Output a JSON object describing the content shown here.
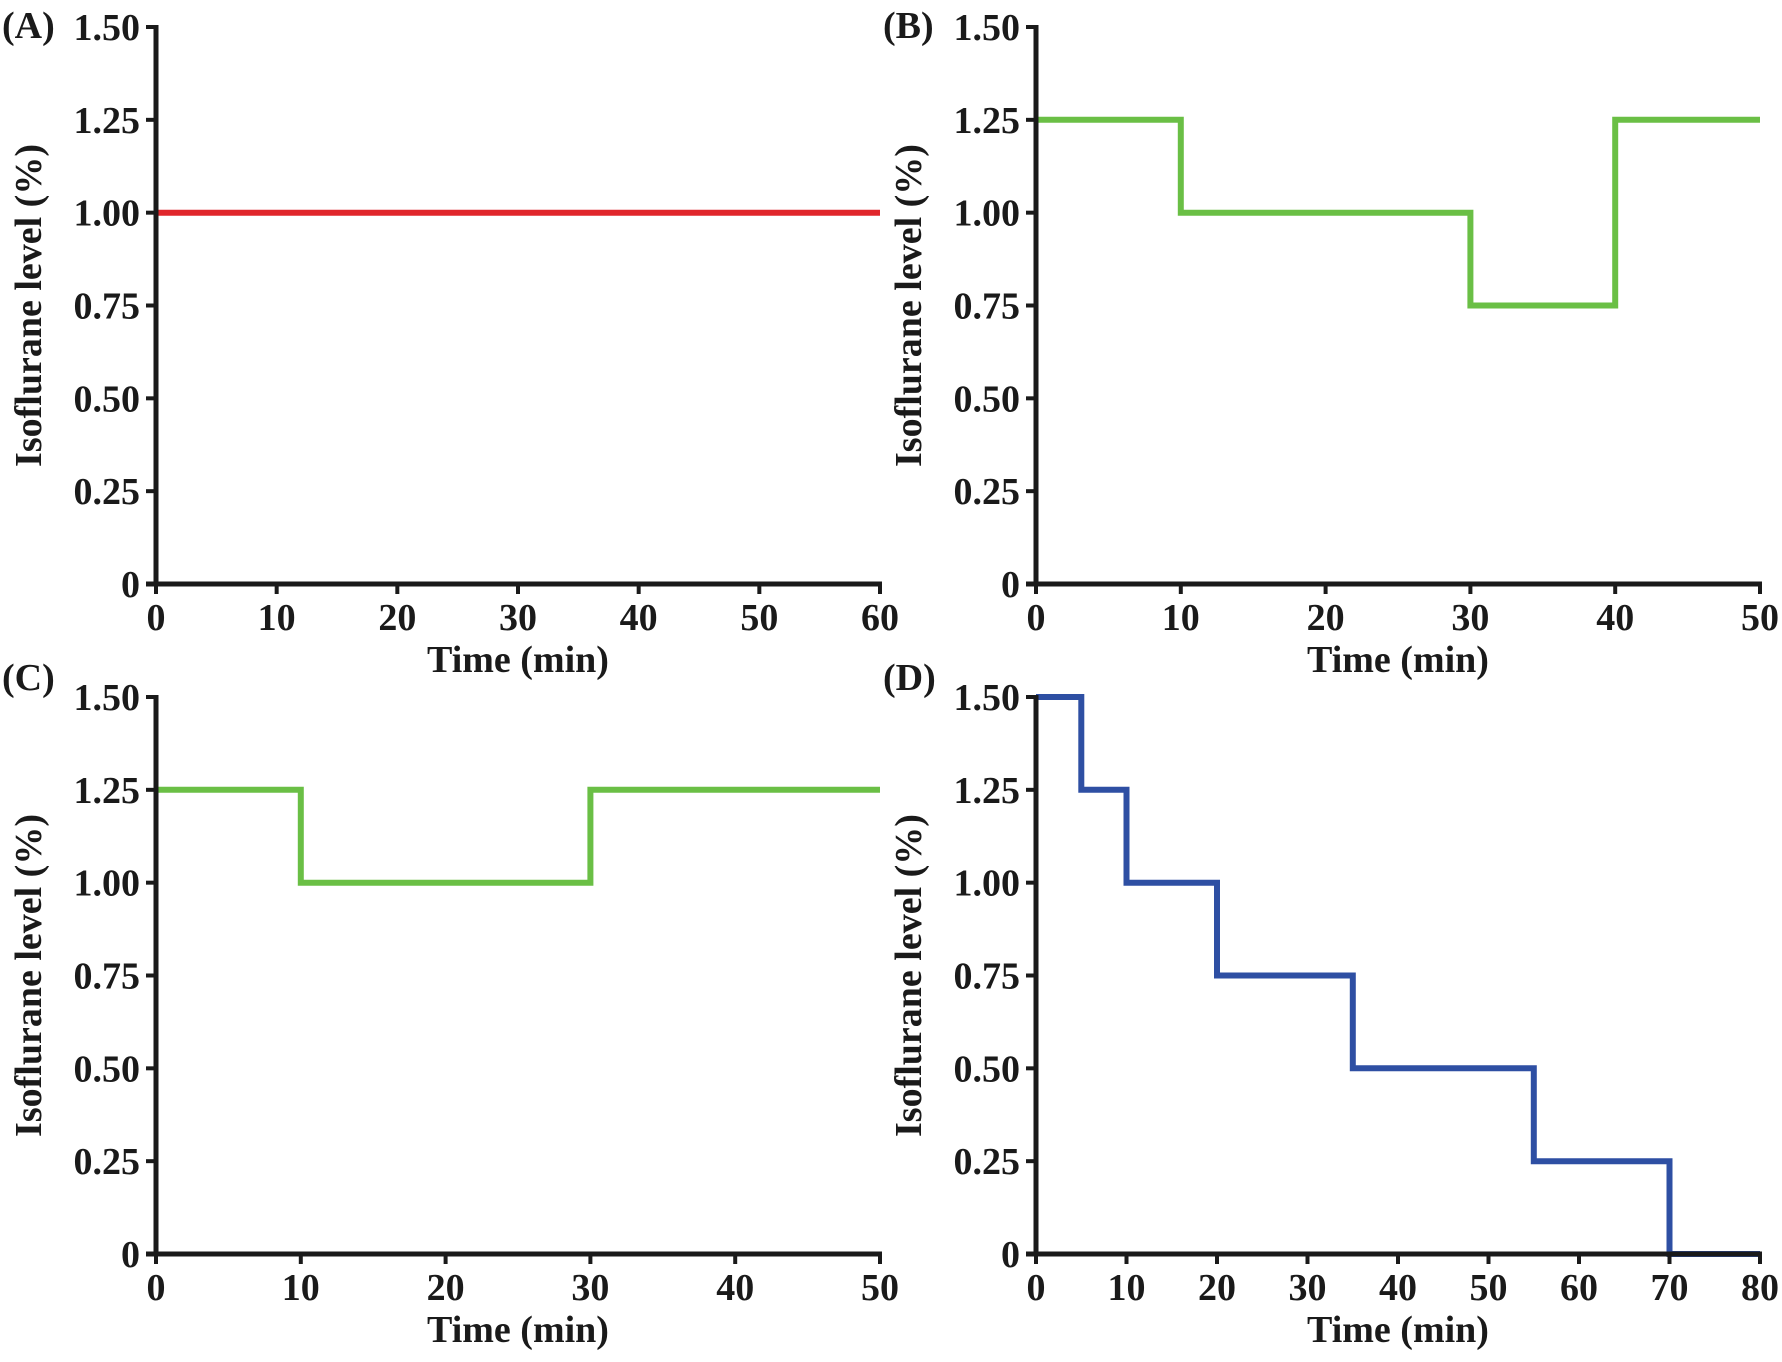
{
  "chart_data": [
    {
      "panel": "(A)",
      "type": "line",
      "step": true,
      "xlabel": "Time (min)",
      "ylabel": "Isoflurane level (%)",
      "xlim": [
        0,
        60
      ],
      "ylim": [
        0,
        1.5
      ],
      "xticks": [
        0,
        10,
        20,
        30,
        40,
        50,
        60
      ],
      "yticks": [
        0,
        0.25,
        0.5,
        0.75,
        1.0,
        1.25,
        1.5
      ],
      "ytick_labels": [
        "0",
        "0.25",
        "0.50",
        "0.75",
        "1.00",
        "1.25",
        "1.50"
      ],
      "color": "#e0262b",
      "x": [
        0,
        60
      ],
      "y": [
        1.0,
        1.0
      ]
    },
    {
      "panel": "(B)",
      "type": "line",
      "step": true,
      "xlabel": "Time (min)",
      "ylabel": "Isoflurane level (%)",
      "xlim": [
        0,
        50
      ],
      "ylim": [
        0,
        1.5
      ],
      "xticks": [
        0,
        10,
        20,
        30,
        40,
        50
      ],
      "yticks": [
        0,
        0.25,
        0.5,
        0.75,
        1.0,
        1.25,
        1.5
      ],
      "ytick_labels": [
        "0",
        "0.25",
        "0.50",
        "0.75",
        "1.00",
        "1.25",
        "1.50"
      ],
      "color": "#6abf45",
      "x": [
        0,
        10,
        10,
        30,
        30,
        40,
        40,
        50
      ],
      "y": [
        1.25,
        1.25,
        1.0,
        1.0,
        0.75,
        0.75,
        1.25,
        1.25
      ]
    },
    {
      "panel": "(C)",
      "type": "line",
      "step": true,
      "xlabel": "Time (min)",
      "ylabel": "Isoflurane level (%)",
      "xlim": [
        0,
        50
      ],
      "ylim": [
        0,
        1.5
      ],
      "xticks": [
        0,
        10,
        20,
        30,
        40,
        50
      ],
      "yticks": [
        0,
        0.25,
        0.5,
        0.75,
        1.0,
        1.25,
        1.5
      ],
      "ytick_labels": [
        "0",
        "0.25",
        "0.50",
        "0.75",
        "1.00",
        "1.25",
        "1.50"
      ],
      "color": "#6abf45",
      "x": [
        0,
        10,
        10,
        30,
        30,
        50
      ],
      "y": [
        1.25,
        1.25,
        1.0,
        1.0,
        1.25,
        1.25
      ]
    },
    {
      "panel": "(D)",
      "type": "line",
      "step": true,
      "xlabel": "Time (min)",
      "ylabel": "Isoflurane level (%)",
      "xlim": [
        0,
        80
      ],
      "ylim": [
        0,
        1.5
      ],
      "xticks": [
        0,
        10,
        20,
        30,
        40,
        50,
        60,
        70,
        80
      ],
      "yticks": [
        0,
        0.25,
        0.5,
        0.75,
        1.0,
        1.25,
        1.5
      ],
      "ytick_labels": [
        "0",
        "0.25",
        "0.50",
        "0.75",
        "1.00",
        "1.25",
        "1.50"
      ],
      "color": "#2e4fa3",
      "x": [
        0,
        5,
        5,
        10,
        10,
        20,
        20,
        35,
        35,
        55,
        55,
        70,
        70,
        80
      ],
      "y": [
        1.5,
        1.5,
        1.25,
        1.25,
        1.0,
        1.0,
        0.75,
        0.75,
        0.5,
        0.5,
        0.25,
        0.25,
        0,
        0
      ]
    }
  ]
}
